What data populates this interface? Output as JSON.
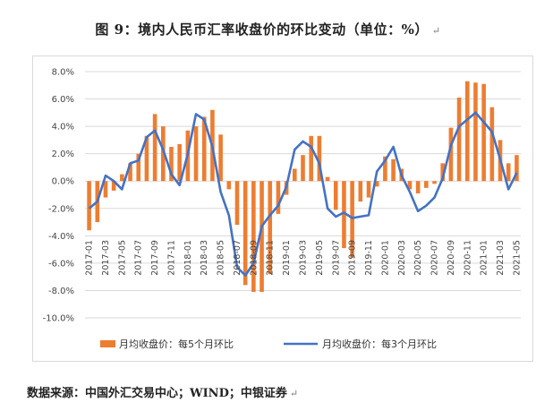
{
  "title": "图 9：境内人民币汇率收盘价的环比变动（单位：%）",
  "return_mark": "↵",
  "source": "数据来源：中国外汇交易中心；WIND；中银证券",
  "chart_data": {
    "type": "bar+line",
    "title": "图 9：境内人民币汇率收盘价的环比变动（单位：%）",
    "ylim": [
      -10,
      8
    ],
    "yticks": [
      "8.0%",
      "6.0%",
      "4.0%",
      "2.0%",
      "0.0%",
      "-2.0%",
      "-4.0%",
      "-6.0%",
      "-8.0%",
      "-10.0%"
    ],
    "ytick_values": [
      8,
      6,
      4,
      2,
      0,
      -2,
      -4,
      -6,
      -8,
      -10
    ],
    "grid": true,
    "legend_position": "bottom",
    "categories": [
      "2017-01",
      "2017-02",
      "2017-03",
      "2017-04",
      "2017-05",
      "2017-06",
      "2017-07",
      "2017-08",
      "2017-09",
      "2017-10",
      "2017-11",
      "2017-12",
      "2018-01",
      "2018-02",
      "2018-03",
      "2018-04",
      "2018-05",
      "2018-06",
      "2018-07",
      "2018-08",
      "2018-09",
      "2018-10",
      "2018-11",
      "2018-12",
      "2019-01",
      "2019-02",
      "2019-03",
      "2019-04",
      "2019-05",
      "2019-06",
      "2019-07",
      "2019-08",
      "2019-09",
      "2019-10",
      "2019-11",
      "2019-12",
      "2020-01",
      "2020-02",
      "2020-03",
      "2020-04",
      "2020-05",
      "2020-06",
      "2020-07",
      "2020-08",
      "2020-09",
      "2020-10",
      "2020-11",
      "2020-12",
      "2021-01",
      "2021-02",
      "2021-03",
      "2021-04",
      "2021-05"
    ],
    "xtick_labels": [
      "2017-01",
      "2017-03",
      "2017-05",
      "2017-07",
      "2017-09",
      "2017-11",
      "2018-01",
      "2018-03",
      "2018-05",
      "2018-07",
      "2018-09",
      "2018-11",
      "2019-01",
      "2019-03",
      "2019-05",
      "2019-07",
      "2019-09",
      "2019-11",
      "2020-01",
      "2020-03",
      "2020-05",
      "2020-07",
      "2020-09",
      "2020-11",
      "2021-01",
      "2021-03",
      "2021-05"
    ],
    "series": [
      {
        "name": "月均收盘价：每5个月环比",
        "kind": "bar",
        "color": "#ED7D31",
        "values": [
          -3.6,
          -3.0,
          -1.2,
          -0.7,
          0.5,
          1.3,
          2.0,
          3.3,
          4.9,
          4.0,
          2.5,
          2.7,
          3.7,
          4.0,
          4.7,
          5.2,
          3.4,
          -0.6,
          -3.2,
          -7.6,
          -8.1,
          -8.1,
          -6.8,
          -2.4,
          -1.0,
          0.9,
          1.9,
          3.3,
          3.3,
          0.3,
          -2.1,
          -4.9,
          -5.6,
          -1.5,
          -1.2,
          -0.4,
          1.8,
          1.6,
          0.9,
          -0.6,
          -0.9,
          -0.5,
          -0.2,
          1.3,
          3.9,
          6.1,
          7.3,
          7.2,
          7.1,
          5.4,
          3.0,
          1.3,
          1.9
        ]
      },
      {
        "name": "月均收盘价：每3个月环比",
        "kind": "line",
        "color": "#4472C4",
        "values": [
          -2.0,
          -1.5,
          0.4,
          0.0,
          -0.6,
          1.3,
          1.5,
          3.2,
          3.7,
          2.3,
          0.5,
          -0.3,
          2.0,
          4.9,
          4.5,
          2.5,
          -0.8,
          -2.5,
          -6.3,
          -6.9,
          -6.0,
          -3.3,
          -2.5,
          -1.8,
          -0.4,
          2.3,
          2.9,
          2.5,
          1.3,
          -2.0,
          -2.6,
          -2.3,
          -2.7,
          -2.6,
          -2.5,
          0.7,
          1.5,
          2.5,
          0.4,
          -0.8,
          -2.2,
          -1.8,
          -1.2,
          0.2,
          2.6,
          4.0,
          4.5,
          5.0,
          4.3,
          3.6,
          1.6,
          -0.6,
          0.6
        ]
      }
    ]
  }
}
